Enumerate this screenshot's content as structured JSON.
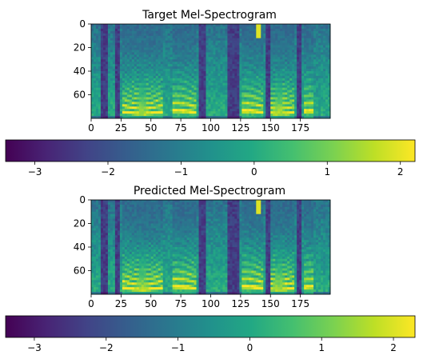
{
  "chart_data": [
    {
      "type": "heatmap",
      "title": "Target Mel-Spectrogram",
      "xlabel": "",
      "ylabel": "",
      "x_range": [
        0,
        200
      ],
      "y_range": [
        0,
        80
      ],
      "y_inverted": true,
      "x_ticks": [
        0,
        25,
        50,
        75,
        100,
        125,
        150,
        175
      ],
      "y_ticks": [
        0,
        20,
        40,
        60
      ],
      "colormap": "viridis",
      "colorbar": {
        "orientation": "horizontal",
        "vmin": -3.4,
        "vmax": 2.2,
        "ticks": [
          -3,
          -2,
          -1,
          0,
          1,
          2
        ],
        "tick_labels": [
          "−3",
          "−2",
          "−1",
          "0",
          "1",
          "2"
        ]
      }
    },
    {
      "type": "heatmap",
      "title": "Predicted Mel-Spectrogram",
      "xlabel": "",
      "ylabel": "",
      "x_range": [
        0,
        200
      ],
      "y_range": [
        0,
        80
      ],
      "y_inverted": true,
      "x_ticks": [
        0,
        25,
        50,
        75,
        100,
        125,
        150,
        175
      ],
      "y_ticks": [
        0,
        20,
        40,
        60
      ],
      "colormap": "viridis",
      "colorbar": {
        "orientation": "horizontal",
        "vmin": -3.4,
        "vmax": 2.3,
        "ticks": [
          -3,
          -2,
          -1,
          0,
          1,
          2
        ],
        "tick_labels": [
          "−3",
          "−2",
          "−1",
          "0",
          "1",
          "2"
        ]
      }
    }
  ]
}
